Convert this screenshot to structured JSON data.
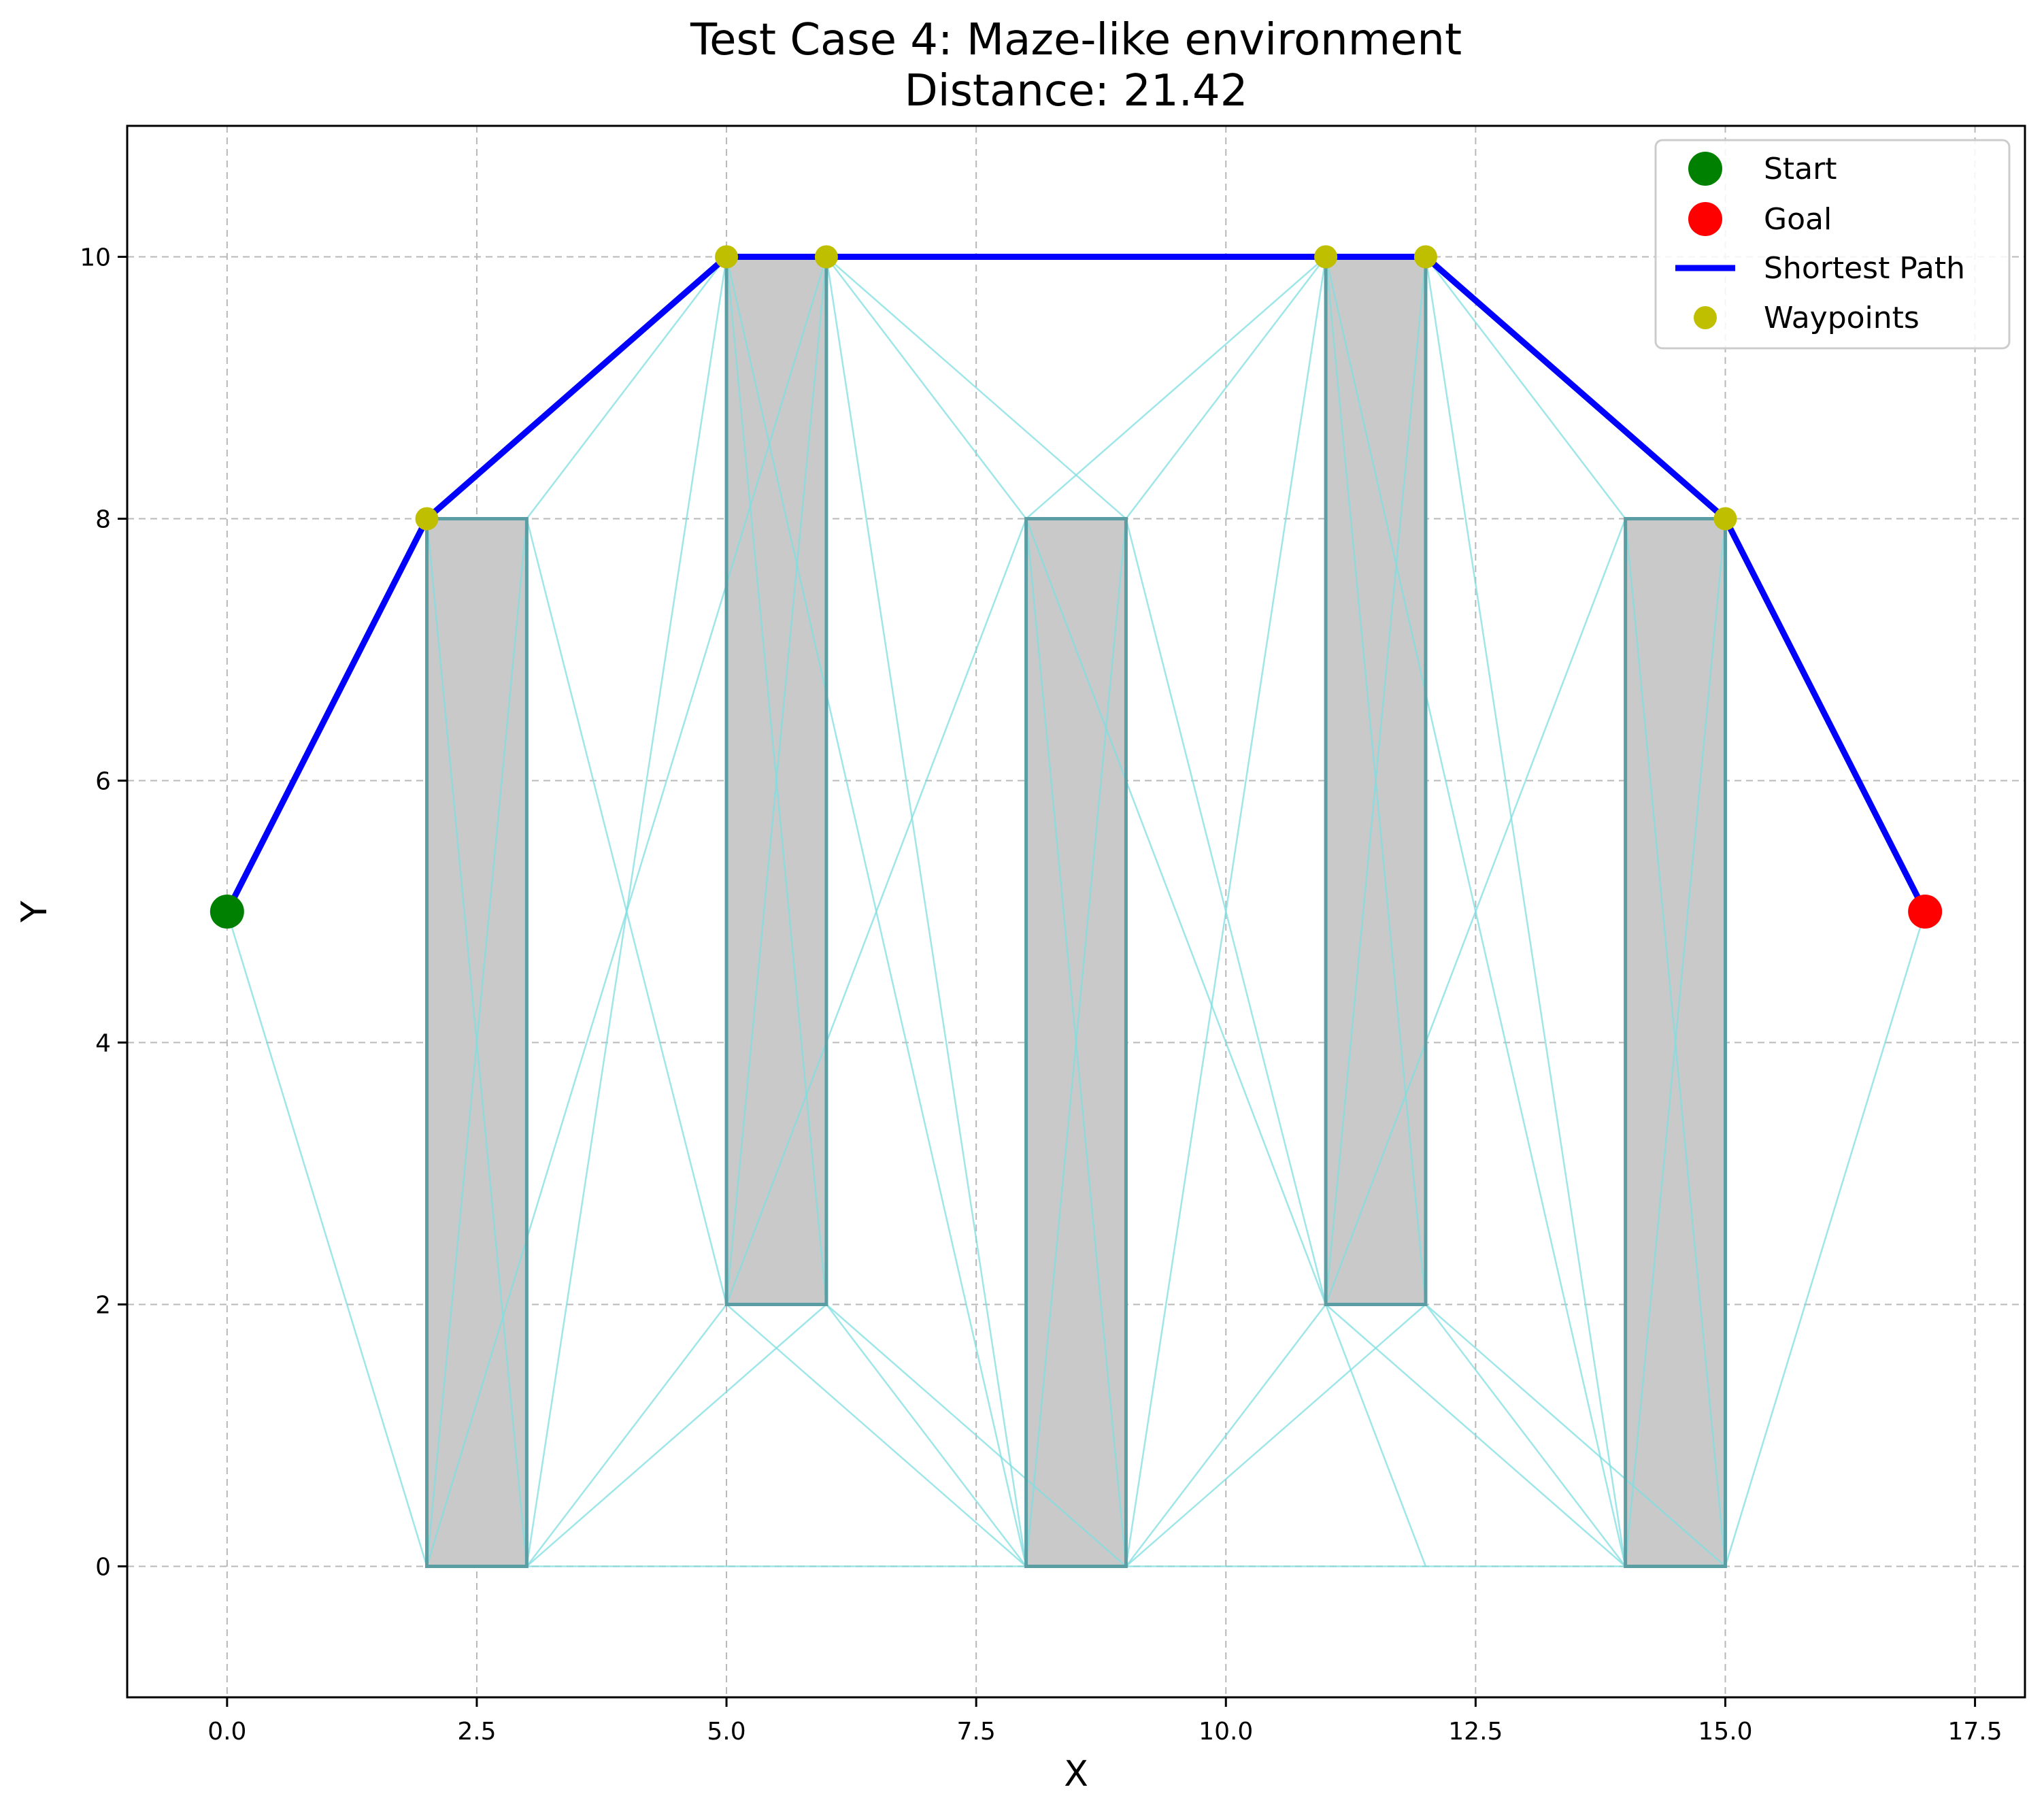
{
  "chart_data": {
    "type": "line",
    "title": "Test Case 4: Maze-like environment",
    "subtitle": "Distance: 21.42",
    "xlabel": "X",
    "ylabel": "Y",
    "xlim": [
      -1,
      18
    ],
    "ylim": [
      -1,
      11
    ],
    "grid": true,
    "legend_position": "top-right",
    "xticks": [
      0.0,
      2.5,
      5.0,
      7.5,
      10.0,
      12.5,
      15.0,
      17.5
    ],
    "xtick_labels": [
      "0.0",
      "2.5",
      "5.0",
      "7.5",
      "10.0",
      "12.5",
      "15.0",
      "17.5"
    ],
    "yticks": [
      0,
      2,
      4,
      6,
      8,
      10
    ],
    "ytick_labels": [
      "0",
      "2",
      "4",
      "6",
      "8",
      "10"
    ],
    "start": {
      "x": 0,
      "y": 5,
      "color": "#008000"
    },
    "goal": {
      "x": 17,
      "y": 5,
      "color": "#ff0000"
    },
    "obstacles": [
      {
        "x0": 2,
        "y0": 0,
        "x1": 3,
        "y1": 8
      },
      {
        "x0": 5,
        "y0": 2,
        "x1": 6,
        "y1": 10
      },
      {
        "x0": 8,
        "y0": 0,
        "x1": 9,
        "y1": 8
      },
      {
        "x0": 11,
        "y0": 2,
        "x1": 12,
        "y1": 10
      },
      {
        "x0": 14,
        "y0": 0,
        "x1": 15,
        "y1": 8
      }
    ],
    "visibility_edges": [
      [
        [
          0,
          5
        ],
        [
          2,
          0
        ]
      ],
      [
        [
          0,
          5
        ],
        [
          2,
          8
        ]
      ],
      [
        [
          2,
          8
        ],
        [
          3,
          0
        ]
      ],
      [
        [
          2,
          0
        ],
        [
          3,
          8
        ]
      ],
      [
        [
          2,
          8
        ],
        [
          5,
          10
        ]
      ],
      [
        [
          3,
          8
        ],
        [
          5,
          10
        ]
      ],
      [
        [
          3,
          8
        ],
        [
          5,
          2
        ]
      ],
      [
        [
          3,
          0
        ],
        [
          5,
          2
        ]
      ],
      [
        [
          3,
          0
        ],
        [
          6,
          2
        ]
      ],
      [
        [
          3,
          0
        ],
        [
          5,
          10
        ]
      ],
      [
        [
          3,
          0
        ],
        [
          8,
          0
        ]
      ],
      [
        [
          2,
          0
        ],
        [
          6,
          10
        ]
      ],
      [
        [
          5,
          10
        ],
        [
          6,
          2
        ]
      ],
      [
        [
          5,
          2
        ],
        [
          6,
          10
        ]
      ],
      [
        [
          5,
          2
        ],
        [
          8,
          0
        ]
      ],
      [
        [
          6,
          2
        ],
        [
          8,
          0
        ]
      ],
      [
        [
          6,
          2
        ],
        [
          9,
          0
        ]
      ],
      [
        [
          6,
          10
        ],
        [
          8,
          8
        ]
      ],
      [
        [
          6,
          10
        ],
        [
          9,
          8
        ]
      ],
      [
        [
          6,
          10
        ],
        [
          8,
          0
        ]
      ],
      [
        [
          5,
          2
        ],
        [
          8,
          8
        ]
      ],
      [
        [
          5,
          10
        ],
        [
          8,
          0
        ]
      ],
      [
        [
          8,
          8
        ],
        [
          9,
          0
        ]
      ],
      [
        [
          8,
          0
        ],
        [
          9,
          8
        ]
      ],
      [
        [
          8,
          8
        ],
        [
          11,
          10
        ]
      ],
      [
        [
          9,
          8
        ],
        [
          11,
          10
        ]
      ],
      [
        [
          9,
          8
        ],
        [
          11,
          2
        ]
      ],
      [
        [
          8,
          8
        ],
        [
          12,
          0
        ]
      ],
      [
        [
          9,
          0
        ],
        [
          11,
          2
        ]
      ],
      [
        [
          9,
          0
        ],
        [
          12,
          2
        ]
      ],
      [
        [
          9,
          0
        ],
        [
          11,
          10
        ]
      ],
      [
        [
          9,
          0
        ],
        [
          14,
          0
        ]
      ],
      [
        [
          11,
          10
        ],
        [
          12,
          2
        ]
      ],
      [
        [
          11,
          2
        ],
        [
          12,
          10
        ]
      ],
      [
        [
          11,
          2
        ],
        [
          14,
          0
        ]
      ],
      [
        [
          12,
          2
        ],
        [
          14,
          0
        ]
      ],
      [
        [
          12,
          2
        ],
        [
          15,
          0
        ]
      ],
      [
        [
          12,
          10
        ],
        [
          14,
          8
        ]
      ],
      [
        [
          12,
          10
        ],
        [
          15,
          8
        ]
      ],
      [
        [
          12,
          10
        ],
        [
          14,
          0
        ]
      ],
      [
        [
          11,
          2
        ],
        [
          14,
          8
        ]
      ],
      [
        [
          11,
          10
        ],
        [
          14,
          0
        ]
      ],
      [
        [
          14,
          8
        ],
        [
          15,
          0
        ]
      ],
      [
        [
          14,
          0
        ],
        [
          15,
          8
        ]
      ],
      [
        [
          15,
          0
        ],
        [
          17,
          5
        ]
      ],
      [
        [
          15,
          8
        ],
        [
          17,
          5
        ]
      ]
    ],
    "series": [
      {
        "name": "Start",
        "x": [
          0
        ],
        "y": [
          5
        ],
        "color": "#008000"
      },
      {
        "name": "Goal",
        "x": [
          17
        ],
        "y": [
          5
        ],
        "color": "#ff0000"
      },
      {
        "name": "Shortest Path",
        "x": [
          0,
          2,
          5,
          6,
          11,
          12,
          15,
          17
        ],
        "y": [
          5,
          8,
          10,
          10,
          10,
          10,
          8,
          5
        ],
        "color": "#0000ff"
      },
      {
        "name": "Waypoints",
        "x": [
          2,
          5,
          6,
          11,
          12,
          15
        ],
        "y": [
          8,
          10,
          10,
          10,
          10,
          8
        ],
        "color": "#bfbf00"
      }
    ]
  }
}
